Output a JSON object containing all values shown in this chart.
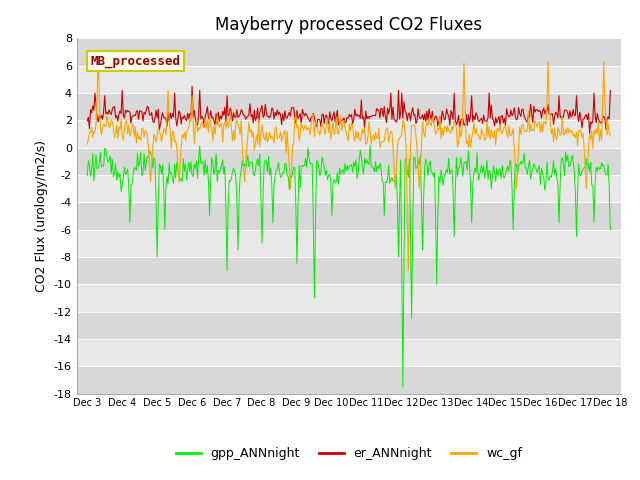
{
  "title": "Mayberry processed CO2 Fluxes",
  "ylabel": "CO2 Flux (urology/m2/s)",
  "ylim": [
    -18,
    8
  ],
  "yticks": [
    -18,
    -16,
    -14,
    -12,
    -10,
    -8,
    -6,
    -4,
    -2,
    0,
    2,
    4,
    6,
    8
  ],
  "n_points": 480,
  "gpp_color": "#00ee00",
  "er_color": "#cc0000",
  "wc_color": "#ffa500",
  "background_color": "#ffffff",
  "stripe_dark": "#d8d8d8",
  "stripe_light": "#e8e8e8",
  "legend_box_label": "MB_processed",
  "legend_box_facecolor": "#fffff0",
  "legend_box_edgecolor": "#cccc00",
  "legend_box_textcolor": "#990000",
  "legend_labels": [
    "gpp_ANNnight",
    "er_ANNnight",
    "wc_gf"
  ],
  "title_fontsize": 12,
  "axis_fontsize": 9,
  "tick_fontsize": 8,
  "legend_fontsize": 9,
  "xtick_labels": [
    "Dec 3",
    "Dec 4",
    "Dec 5",
    "Dec 6",
    "Dec 7",
    "Dec 8",
    "Dec 9",
    "Dec 10",
    "Dec 11",
    "Dec 12",
    "Dec 13",
    "Dec 14",
    "Dec 15",
    "Dec 16",
    "Dec 17",
    "Dec 18"
  ]
}
